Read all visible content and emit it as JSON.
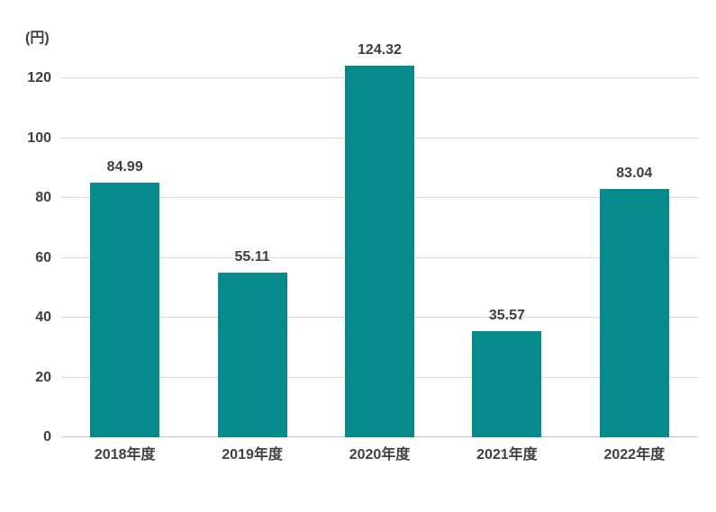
{
  "chart_data": {
    "type": "bar",
    "title": "",
    "unit_label": "(円)",
    "xlabel": "",
    "ylabel": "(円)",
    "categories": [
      "2018年度",
      "2019年度",
      "2020年度",
      "2021年度",
      "2022年度"
    ],
    "values": [
      84.99,
      55.11,
      124.32,
      35.57,
      83.04
    ],
    "value_labels": [
      "84.99",
      "55.11",
      "124.32",
      "35.57",
      "83.04"
    ],
    "y_ticks": [
      0,
      20,
      40,
      60,
      80,
      100,
      120
    ],
    "ylim": [
      0,
      129
    ],
    "grid": true,
    "legend": "none",
    "colors": {
      "bar": "#078a8c",
      "gridline": "#d6d6d6",
      "baseline": "#c6c6c6",
      "text": "#3f3f3f",
      "background": "#ffffff"
    }
  }
}
